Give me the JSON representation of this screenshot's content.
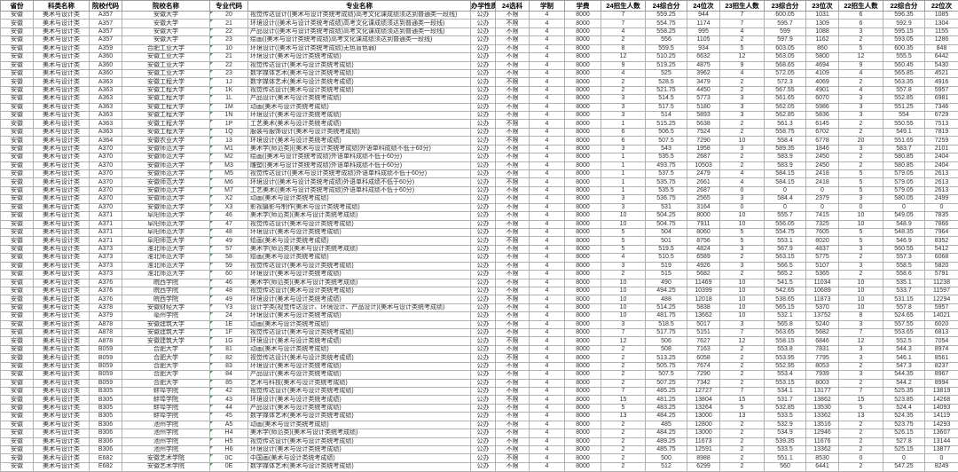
{
  "colors": {
    "grid": "#b2b2b2",
    "outer_border": "#595959",
    "text": "#303030",
    "header_text": "#000000",
    "flag_triangle": "#2f9e44",
    "background": "#ffffff"
  },
  "table": {
    "columns": [
      "省份",
      "科类名称",
      "院校代码",
      "院校名称",
      "专业代码",
      "专业名称",
      "办学性质",
      "24选科",
      "学制",
      "学费",
      "24招生人数",
      "24综合分",
      "24位次",
      "23招生人数",
      "23综合分",
      "23位次",
      "22招生人数",
      "22综合分",
      "22位次"
    ],
    "rows": [
      [
        "安徽",
        "美术与设计类",
        "A357",
        "安徽大学",
        "20",
        "视觉传达设计((美术与设计类统考成绩)高考文化课成绩须达到普通类一段线)",
        "公办",
        "不限",
        "4",
        "8000",
        "7",
        "559.25",
        "944",
        "7",
        "600.05",
        "1031",
        "6",
        "596.35",
        "1085"
      ],
      [
        "安徽",
        "美术与设计类",
        "A357",
        "安徽大学",
        "21",
        "环境设计((美术与设计类统考成绩)高考文化课成绩须达到普通类一段线)",
        "公办",
        "不限",
        "4",
        "8000",
        "7",
        "554.75",
        "1174",
        "7",
        "595.7",
        "1309",
        "6",
        "592.9",
        "1304"
      ],
      [
        "安徽",
        "美术与设计类",
        "A357",
        "安徽大学",
        "22",
        "产品设计((美术与设计类统考成绩)高考文化课成绩须达到普通类一段线)",
        "公办",
        "不限",
        "4",
        "8000",
        "4",
        "558.25",
        "995",
        "4",
        "599",
        "1088",
        "3",
        "595.15",
        "1155"
      ],
      [
        "安徽",
        "美术与设计类",
        "A357",
        "安徽大学",
        "23",
        "绘画((美术与设计类统考成绩)高考文化课成绩须达到普通类一段线)",
        "公办",
        "不限",
        "4",
        "8000",
        "2",
        "556",
        "1105",
        "2",
        "597.9",
        "1162",
        "2",
        "593.05",
        "1286"
      ],
      [
        "安徽",
        "美术与设计类",
        "A359",
        "合肥工业大学",
        "10",
        "环境设计((美术与设计类统考成绩)无色盲色弱)",
        "公办",
        "不限",
        "4",
        "8000",
        "8",
        "559.5",
        "934",
        "5",
        "603.05",
        "860",
        "5",
        "600.35",
        "848"
      ],
      [
        "安徽",
        "美术与设计类",
        "A360",
        "安徽工业大学",
        "21",
        "环境设计(美术与设计类统考成绩)",
        "公办",
        "不限",
        "4",
        "8000",
        "12",
        "510.25",
        "6632",
        "12",
        "563.05",
        "5800",
        "12",
        "555.5",
        "6442"
      ],
      [
        "安徽",
        "美术与设计类",
        "A360",
        "安徽工业大学",
        "22",
        "视觉传达设计(美术与设计类统考成绩)",
        "公办",
        "不限",
        "4",
        "8000",
        "9",
        "519.25",
        "4875",
        "9",
        "568.65",
        "4694",
        "9",
        "560.45",
        "5430"
      ],
      [
        "安徽",
        "美术与设计类",
        "A360",
        "安徽工业大学",
        "23",
        "数字媒体艺术(美术与设计类统考成绩)",
        "公办",
        "不限",
        "4",
        "8000",
        "4",
        "525",
        "3962",
        "4",
        "572.05",
        "4109",
        "4",
        "565.85",
        "4521"
      ],
      [
        "安徽",
        "美术与设计类",
        "A363",
        "安徽工程大学",
        "1J",
        "数字媒体艺术(美术与设计类统考成绩)",
        "公办",
        "不限",
        "4",
        "8000",
        "2",
        "528.5",
        "3479",
        "2",
        "572.3",
        "4069",
        "2",
        "563.35",
        "4916"
      ],
      [
        "安徽",
        "美术与设计类",
        "A363",
        "安徽工程大学",
        "1K",
        "视觉传达设计(美术与设计类统考成绩)",
        "公办",
        "不限",
        "4",
        "8000",
        "2",
        "521.75",
        "4450",
        "2",
        "567.55",
        "4901",
        "4",
        "557.8",
        "5957"
      ],
      [
        "安徽",
        "美术与设计类",
        "A363",
        "安徽工程大学",
        "1L",
        "产品设计(美术与设计类统考成绩)",
        "公办",
        "不限",
        "4",
        "8000",
        "3",
        "514.5",
        "5773",
        "3",
        "561.65",
        "6070",
        "3",
        "552.85",
        "6981"
      ],
      [
        "安徽",
        "美术与设计类",
        "A363",
        "安徽工程大学",
        "1M",
        "动画(美术与设计类统考成绩)",
        "公办",
        "不限",
        "4",
        "8000",
        "3",
        "517.5",
        "5180",
        "3",
        "562.05",
        "5986",
        "3",
        "551.25",
        "7346"
      ],
      [
        "安徽",
        "美术与设计类",
        "A363",
        "安徽工程大学",
        "1N",
        "环境设计(美术与设计类统考成绩)",
        "公办",
        "不限",
        "4",
        "8000",
        "3",
        "514",
        "5893",
        "3",
        "562.85",
        "5836",
        "3",
        "554",
        "6729"
      ],
      [
        "安徽",
        "美术与设计类",
        "A363",
        "安徽工程大学",
        "1P",
        "工艺美术(美术与设计类统考成绩)",
        "公办",
        "不限",
        "4",
        "8000",
        "1",
        "515.25",
        "5638",
        "2",
        "561.3",
        "6145",
        "2",
        "550.55",
        "7513"
      ],
      [
        "安徽",
        "美术与设计类",
        "A363",
        "安徽工程大学",
        "1Q",
        "服装与服饰设计(美术与设计类统考成绩)",
        "公办",
        "不限",
        "4",
        "8000",
        "6",
        "506.5",
        "7524",
        "2",
        "558.75",
        "6702",
        "2",
        "549.1",
        "7819"
      ],
      [
        "安徽",
        "美术与设计类",
        "A364",
        "安徽农业大学",
        "13",
        "环境设计(美术与设计类统考成绩)",
        "公办",
        "不限",
        "4",
        "8000",
        "6",
        "507.5",
        "7290",
        "10",
        "558.4",
        "6778",
        "20",
        "551.65",
        "7259"
      ],
      [
        "安徽",
        "美术与设计类",
        "A370",
        "安徽师范大学",
        "M1",
        "美术学(师范类)((美术与设计类统考成绩)外语单科成绩不低于60分)",
        "公办",
        "不限",
        "4",
        "8000",
        "3",
        "543",
        "1958",
        "3",
        "589.35",
        "1846",
        "3",
        "583.7",
        "2101"
      ],
      [
        "安徽",
        "美术与设计类",
        "A370",
        "安徽师范大学",
        "M2",
        "绘画((美术与设计类统考成绩)外语单科成绩不低于60分)",
        "公办",
        "不限",
        "4",
        "8000",
        "1",
        "535.5",
        "2687",
        "2",
        "583.9",
        "2450",
        "2",
        "580.85",
        "2404"
      ],
      [
        "安徽",
        "美术与设计类",
        "A370",
        "安徽师范大学",
        "M3",
        "雕塑((美术与设计类统考成绩)外语单科成绩不低于60分)",
        "公办",
        "不限",
        "4",
        "8000",
        "1",
        "493.75",
        "10503",
        "2",
        "583.9",
        "2450",
        "2",
        "580.85",
        "2404"
      ],
      [
        "安徽",
        "美术与设计类",
        "A370",
        "安徽师范大学",
        "M5",
        "视觉传达设计((美术与设计类统考成绩)外语单科成绩不低于60分)",
        "公办",
        "不限",
        "4",
        "8000",
        "1",
        "537.5",
        "2479",
        "4",
        "584.15",
        "2418",
        "5",
        "579.05",
        "2613"
      ],
      [
        "安徽",
        "美术与设计类",
        "A370",
        "安徽师范大学",
        "M6",
        "环境设计((美术与设计类统考成绩)外语单科成绩不低于60分)",
        "公办",
        "不限",
        "4",
        "8000",
        "1",
        "535.75",
        "2661",
        "4",
        "584.15",
        "2418",
        "5",
        "579.05",
        "2613"
      ],
      [
        "安徽",
        "美术与设计类",
        "A370",
        "安徽师范大学",
        "M7",
        "工艺美术((美术与设计类统考成绩)外语单科成绩不低于60分)",
        "公办",
        "不限",
        "4",
        "8000",
        "1",
        "535.5",
        "2687",
        "0",
        "0",
        "0",
        "5",
        "579.05",
        "2613"
      ],
      [
        "安徽",
        "美术与设计类",
        "A370",
        "安徽师范大学",
        "X2",
        "动画(美术与设计类统考成绩)",
        "公办",
        "不限",
        "4",
        "8000",
        "3",
        "536.75",
        "2565",
        "3",
        "584.4",
        "2379",
        "3",
        "580.05",
        "2499"
      ],
      [
        "安徽",
        "美术与设计类",
        "A370",
        "安徽师范大学",
        "X3",
        "影视摄影与制作(美术与设计类统考成绩)",
        "公办",
        "不限",
        "4",
        "8000",
        "3",
        "531",
        "3164",
        "0",
        "0",
        "0",
        "0",
        "0",
        "0"
      ],
      [
        "安徽",
        "美术与设计类",
        "A371",
        "阜阳师范大学",
        "46",
        "美术学(师范类)(美术与设计类统考成绩)",
        "公办",
        "不限",
        "4",
        "8000",
        "10",
        "504.25",
        "8000",
        "10",
        "555.7",
        "7415",
        "10",
        "549.05",
        "7835"
      ],
      [
        "安徽",
        "美术与设计类",
        "A371",
        "阜阳师范大学",
        "47",
        "视觉传达设计(美术与设计类统考成绩)",
        "公办",
        "不限",
        "4",
        "8000",
        "10",
        "504.75",
        "7911",
        "10",
        "556.05",
        "7325",
        "10",
        "548.9",
        "7866"
      ],
      [
        "安徽",
        "美术与设计类",
        "A371",
        "阜阳师范大学",
        "48",
        "环境设计(美术与设计类统考成绩)",
        "公办",
        "不限",
        "4",
        "8000",
        "5",
        "504",
        "8060",
        "5",
        "554.75",
        "7605",
        "5",
        "548.35",
        "7964"
      ],
      [
        "安徽",
        "美术与设计类",
        "A371",
        "阜阳师范大学",
        "49",
        "绘画(美术与设计类统考成绩)",
        "公办",
        "不限",
        "4",
        "8000",
        "5",
        "501",
        "8756",
        "5",
        "553.1",
        "8020",
        "5",
        "546.9",
        "8352"
      ],
      [
        "安徽",
        "美术与设计类",
        "A373",
        "淮北师范大学",
        "57",
        "美术学(师范类)(美术与设计类统考成绩)",
        "公办",
        "不限",
        "4",
        "8000",
        "5",
        "519.5",
        "4824",
        "3",
        "567.9",
        "4837",
        "3",
        "560.55",
        "5412"
      ],
      [
        "安徽",
        "美术与设计类",
        "A373",
        "淮北师范大学",
        "58",
        "绘画(美术与设计类统考成绩)",
        "公办",
        "不限",
        "4",
        "8000",
        "4",
        "510.5",
        "6589",
        "2",
        "563.15",
        "5775",
        "2",
        "557.3",
        "6068"
      ],
      [
        "安徽",
        "美术与设计类",
        "A373",
        "淮北师范大学",
        "59",
        "视觉传达设计(美术与设计类统考成绩)",
        "公办",
        "不限",
        "4",
        "8000",
        "3",
        "519",
        "4926",
        "3",
        "566.5",
        "5107",
        "3",
        "558.5",
        "5820"
      ],
      [
        "安徽",
        "美术与设计类",
        "A373",
        "淮北师范大学",
        "60",
        "环境设计(美术与设计类统考成绩)",
        "公办",
        "不限",
        "4",
        "8000",
        "2",
        "515",
        "5682",
        "2",
        "565.2",
        "5365",
        "2",
        "558.6",
        "5791"
      ],
      [
        "安徽",
        "美术与设计类",
        "A376",
        "皖西学院",
        "46",
        "美术学(师范类)(美术与设计类统考成绩)",
        "公办",
        "不限",
        "4",
        "8000",
        "10",
        "490",
        "11469",
        "10",
        "541.5",
        "11034",
        "10",
        "535.1",
        "11238"
      ],
      [
        "安徽",
        "美术与设计类",
        "A376",
        "皖西学院",
        "48",
        "视觉传达设计(美术与设计类统考成绩)",
        "公办",
        "不限",
        "4",
        "8000",
        "10",
        "494.25",
        "10399",
        "10",
        "542.65",
        "10689",
        "10",
        "533.7",
        "11597"
      ],
      [
        "安徽",
        "美术与设计类",
        "A376",
        "皖西学院",
        "49",
        "环境设计(美术与设计类统考成绩)",
        "公办",
        "不限",
        "4",
        "8000",
        "10",
        "488",
        "12018",
        "10",
        "538.65",
        "11873",
        "10",
        "531.15",
        "12294"
      ],
      [
        "安徽",
        "美术与设计类",
        "A378",
        "安徽财经大学",
        "Y3",
        "设计学类(视觉传达设计、环境设计、产品设计)(美术与设计类统考成绩)",
        "公办",
        "不限",
        "4",
        "8000",
        "10",
        "514.25",
        "5838",
        "10",
        "565.15",
        "5370",
        "10",
        "557.8",
        "5957"
      ],
      [
        "安徽",
        "美术与设计类",
        "A379",
        "亳州学院",
        "24",
        "环境设计(美术与设计类统考成绩)",
        "公办",
        "不限",
        "4",
        "8000",
        "10",
        "481.75",
        "13662",
        "10",
        "532.1",
        "13752",
        "8",
        "524.65",
        "14021"
      ],
      [
        "安徽",
        "美术与设计类",
        "A878",
        "安徽建筑大学",
        "1E",
        "动画(美术与设计类统考成绩)",
        "公办",
        "不限",
        "4",
        "8000",
        "3",
        "518.5",
        "5017",
        "3",
        "565.8",
        "5240",
        "3",
        "557.55",
        "6020"
      ],
      [
        "安徽",
        "美术与设计类",
        "A878",
        "安徽建筑大学",
        "1F",
        "视觉传达设计(美术与设计类统考成绩)",
        "公办",
        "不限",
        "4",
        "8000",
        "7",
        "517.75",
        "5151",
        "7",
        "563.65",
        "5682",
        "7",
        "553.65",
        "6813"
      ],
      [
        "安徽",
        "美术与设计类",
        "A878",
        "安徽建筑大学",
        "1G",
        "环境设计(美术与设计类统考成绩)",
        "公办",
        "不限",
        "4",
        "8000",
        "12",
        "506",
        "7627",
        "12",
        "558.15",
        "6846",
        "12",
        "552.5",
        "7054"
      ],
      [
        "安徽",
        "美术与设计类",
        "B059",
        "合肥大学",
        "81",
        "动画(美术与设计类统考成绩)",
        "公办",
        "不限",
        "4",
        "8000",
        "2",
        "508",
        "7163",
        "2",
        "553.8",
        "7831",
        "3",
        "544.3",
        "8974"
      ],
      [
        "安徽",
        "美术与设计类",
        "B059",
        "合肥大学",
        "82",
        "视觉传达设计(美术与设计类统考成绩)",
        "公办",
        "不限",
        "4",
        "8000",
        "2",
        "513.25",
        "6058",
        "2",
        "553.95",
        "7795",
        "3",
        "546.1",
        "8561"
      ],
      [
        "安徽",
        "美术与设计类",
        "B059",
        "合肥大学",
        "83",
        "环境设计(美术与设计类统考成绩)",
        "公办",
        "不限",
        "4",
        "8000",
        "2",
        "505.75",
        "7674",
        "2",
        "552.95",
        "8053",
        "2",
        "547.3",
        "8237"
      ],
      [
        "安徽",
        "美术与设计类",
        "B059",
        "合肥大学",
        "84",
        "产品设计(美术与设计类统考成绩)",
        "公办",
        "不限",
        "4",
        "8000",
        "2",
        "507.5",
        "7290",
        "2",
        "553.4",
        "7939",
        "3",
        "544.35",
        "8967"
      ],
      [
        "安徽",
        "美术与设计类",
        "B059",
        "合肥大学",
        "85",
        "艺术与科技(美术与设计类统考成绩)",
        "公办",
        "不限",
        "4",
        "8000",
        "2",
        "507.25",
        "7342",
        "2",
        "553.15",
        "8003",
        "2",
        "544.2",
        "8994"
      ],
      [
        "安徽",
        "美术与设计类",
        "B305",
        "蚌埠学院",
        "42",
        "视觉传达设计(美术与设计类统考成绩)",
        "公办",
        "不限",
        "4",
        "8000",
        "7",
        "485.25",
        "12727",
        "7",
        "534.1",
        "13177",
        "7",
        "525.35",
        "13819"
      ],
      [
        "安徽",
        "美术与设计类",
        "B305",
        "蚌埠学院",
        "43",
        "环境设计(美术与设计类统考成绩)",
        "公办",
        "不限",
        "4",
        "8000",
        "15",
        "481.25",
        "13804",
        "15",
        "531.7",
        "13862",
        "15",
        "523.85",
        "14268"
      ],
      [
        "安徽",
        "美术与设计类",
        "B305",
        "蚌埠学院",
        "44",
        "产品设计(美术与设计类统考成绩)",
        "公办",
        "不限",
        "4",
        "8000",
        "5",
        "483.25",
        "13264",
        "5",
        "532.85",
        "13530",
        "5",
        "524.4",
        "14093"
      ],
      [
        "安徽",
        "美术与设计类",
        "B305",
        "蚌埠学院",
        "45",
        "数字媒体艺术(美术与设计类统考成绩)",
        "公办",
        "不限",
        "4",
        "8000",
        "13",
        "484.25",
        "13000",
        "13",
        "533.5",
        "13362",
        "13",
        "524.35",
        "14119"
      ],
      [
        "安徽",
        "美术与设计类",
        "B306",
        "池州学院",
        "A5",
        "动画(美术与设计类统考成绩)",
        "公办",
        "不限",
        "4",
        "8000",
        "2",
        "485",
        "12800",
        "2",
        "532.9",
        "13516",
        "2",
        "523.75",
        "14293"
      ],
      [
        "安徽",
        "美术与设计类",
        "B306",
        "池州学院",
        "H4",
        "美术学(师范类)(美术与设计类统考成绩)",
        "公办",
        "不限",
        "4",
        "8000",
        "2",
        "484.25",
        "13000",
        "2",
        "534.9",
        "12946",
        "2",
        "526.15",
        "13607"
      ],
      [
        "安徽",
        "美术与设计类",
        "B306",
        "池州学院",
        "H5",
        "视觉传达设计(美术与设计类统考成绩)",
        "公办",
        "不限",
        "4",
        "8000",
        "2",
        "489.25",
        "11673",
        "2",
        "539.35",
        "11676",
        "2",
        "527.8",
        "13144"
      ],
      [
        "安徽",
        "美术与设计类",
        "B306",
        "池州学院",
        "H6",
        "环境设计(美术与设计类统考成绩)",
        "公办",
        "不限",
        "4",
        "8000",
        "2",
        "485.75",
        "12591",
        "2",
        "533.5",
        "13362",
        "2",
        "525.15",
        "13877"
      ],
      [
        "安徽",
        "美术与设计类",
        "E682",
        "安徽艺术学院",
        "0C",
        "中国画(美术与设计类统考成绩)",
        "公办",
        "不限",
        "4",
        "8000",
        "2",
        "500",
        "8988",
        "2",
        "551.1",
        "8530",
        "0",
        "0",
        "0"
      ],
      [
        "安徽",
        "美术与设计类",
        "E682",
        "安徽艺术学院",
        "0E",
        "数字媒体艺术(美术与设计类统考成绩)",
        "公办",
        "不限",
        "4",
        "8000",
        "2",
        "512",
        "6299",
        "2",
        "560",
        "6441",
        "2",
        "547.25",
        "8249"
      ]
    ]
  }
}
